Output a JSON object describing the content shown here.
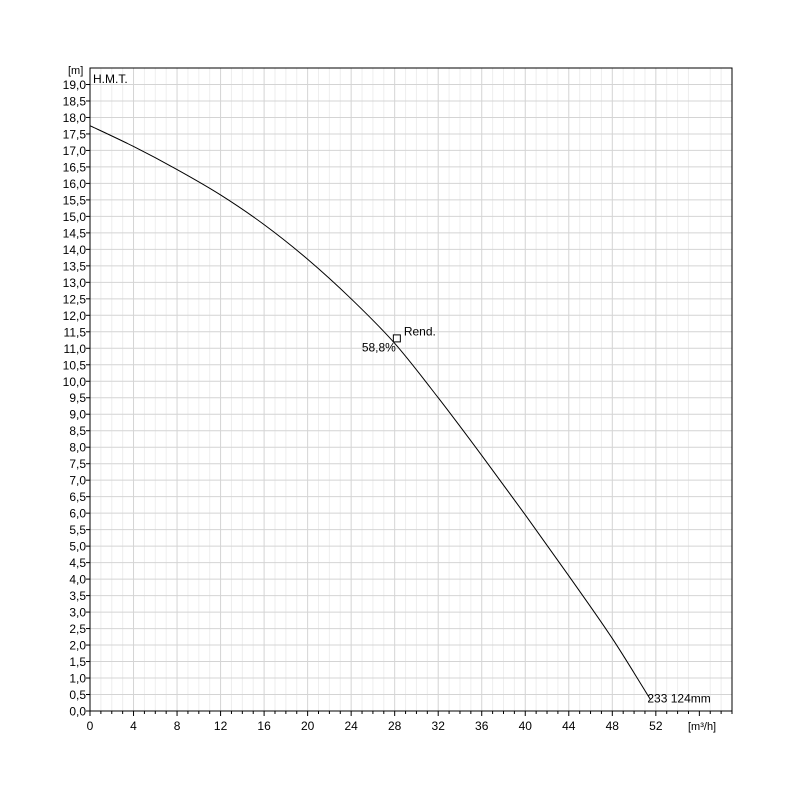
{
  "chart_data": {
    "type": "line",
    "ylabel": "H.M.T.",
    "yunit": "[m]",
    "xunit": "[m³/h]",
    "xlim": [
      0,
      59
    ],
    "ylim": [
      0,
      19.5
    ],
    "x_major_ticks": [
      0,
      4,
      8,
      12,
      16,
      20,
      24,
      28,
      32,
      36,
      40,
      44,
      48,
      52
    ],
    "x_tick_labels": [
      "0",
      "4",
      "8",
      "12",
      "16",
      "20",
      "24",
      "28",
      "32",
      "36",
      "40",
      "44",
      "48",
      "52"
    ],
    "y_ticks": [
      0,
      0.5,
      1,
      1.5,
      2,
      2.5,
      3,
      3.5,
      4,
      4.5,
      5,
      5.5,
      6,
      6.5,
      7,
      7.5,
      8,
      8.5,
      9,
      9.5,
      10,
      10.5,
      11,
      11.5,
      12,
      12.5,
      13,
      13.5,
      14,
      14.5,
      15,
      15.5,
      16,
      16.5,
      17,
      17.5,
      18,
      18.5,
      19
    ],
    "y_tick_labels": [
      "0,0",
      "0,5",
      "1,0",
      "1,5",
      "2,0",
      "2,5",
      "3,0",
      "3,5",
      "4,0",
      "4,5",
      "5,0",
      "5,5",
      "6,0",
      "6,5",
      "7,0",
      "7,5",
      "8,0",
      "8,5",
      "9,0",
      "9,5",
      "10,0",
      "10,5",
      "11,0",
      "11,5",
      "12,0",
      "12,5",
      "13,0",
      "13,5",
      "14,0",
      "14,5",
      "15,0",
      "15,5",
      "16,0",
      "16,5",
      "17,0",
      "17,5",
      "18,0",
      "18,5",
      "19,0"
    ],
    "grid": true,
    "series": [
      {
        "curve_label": "233 124mm",
        "color": "#000000",
        "x": [
          0,
          4,
          8,
          12,
          16,
          20,
          24,
          28,
          32,
          36,
          40,
          44,
          48,
          51.5
        ],
        "y": [
          17.75,
          17.12,
          16.42,
          15.65,
          14.75,
          13.7,
          12.5,
          11.15,
          9.5,
          7.75,
          5.95,
          4.1,
          2.2,
          0.35
        ]
      }
    ],
    "annotations": [
      {
        "type": "marker",
        "x": 28.2,
        "y": 11.3,
        "label": "Rend.",
        "value": "58,8%"
      }
    ]
  }
}
